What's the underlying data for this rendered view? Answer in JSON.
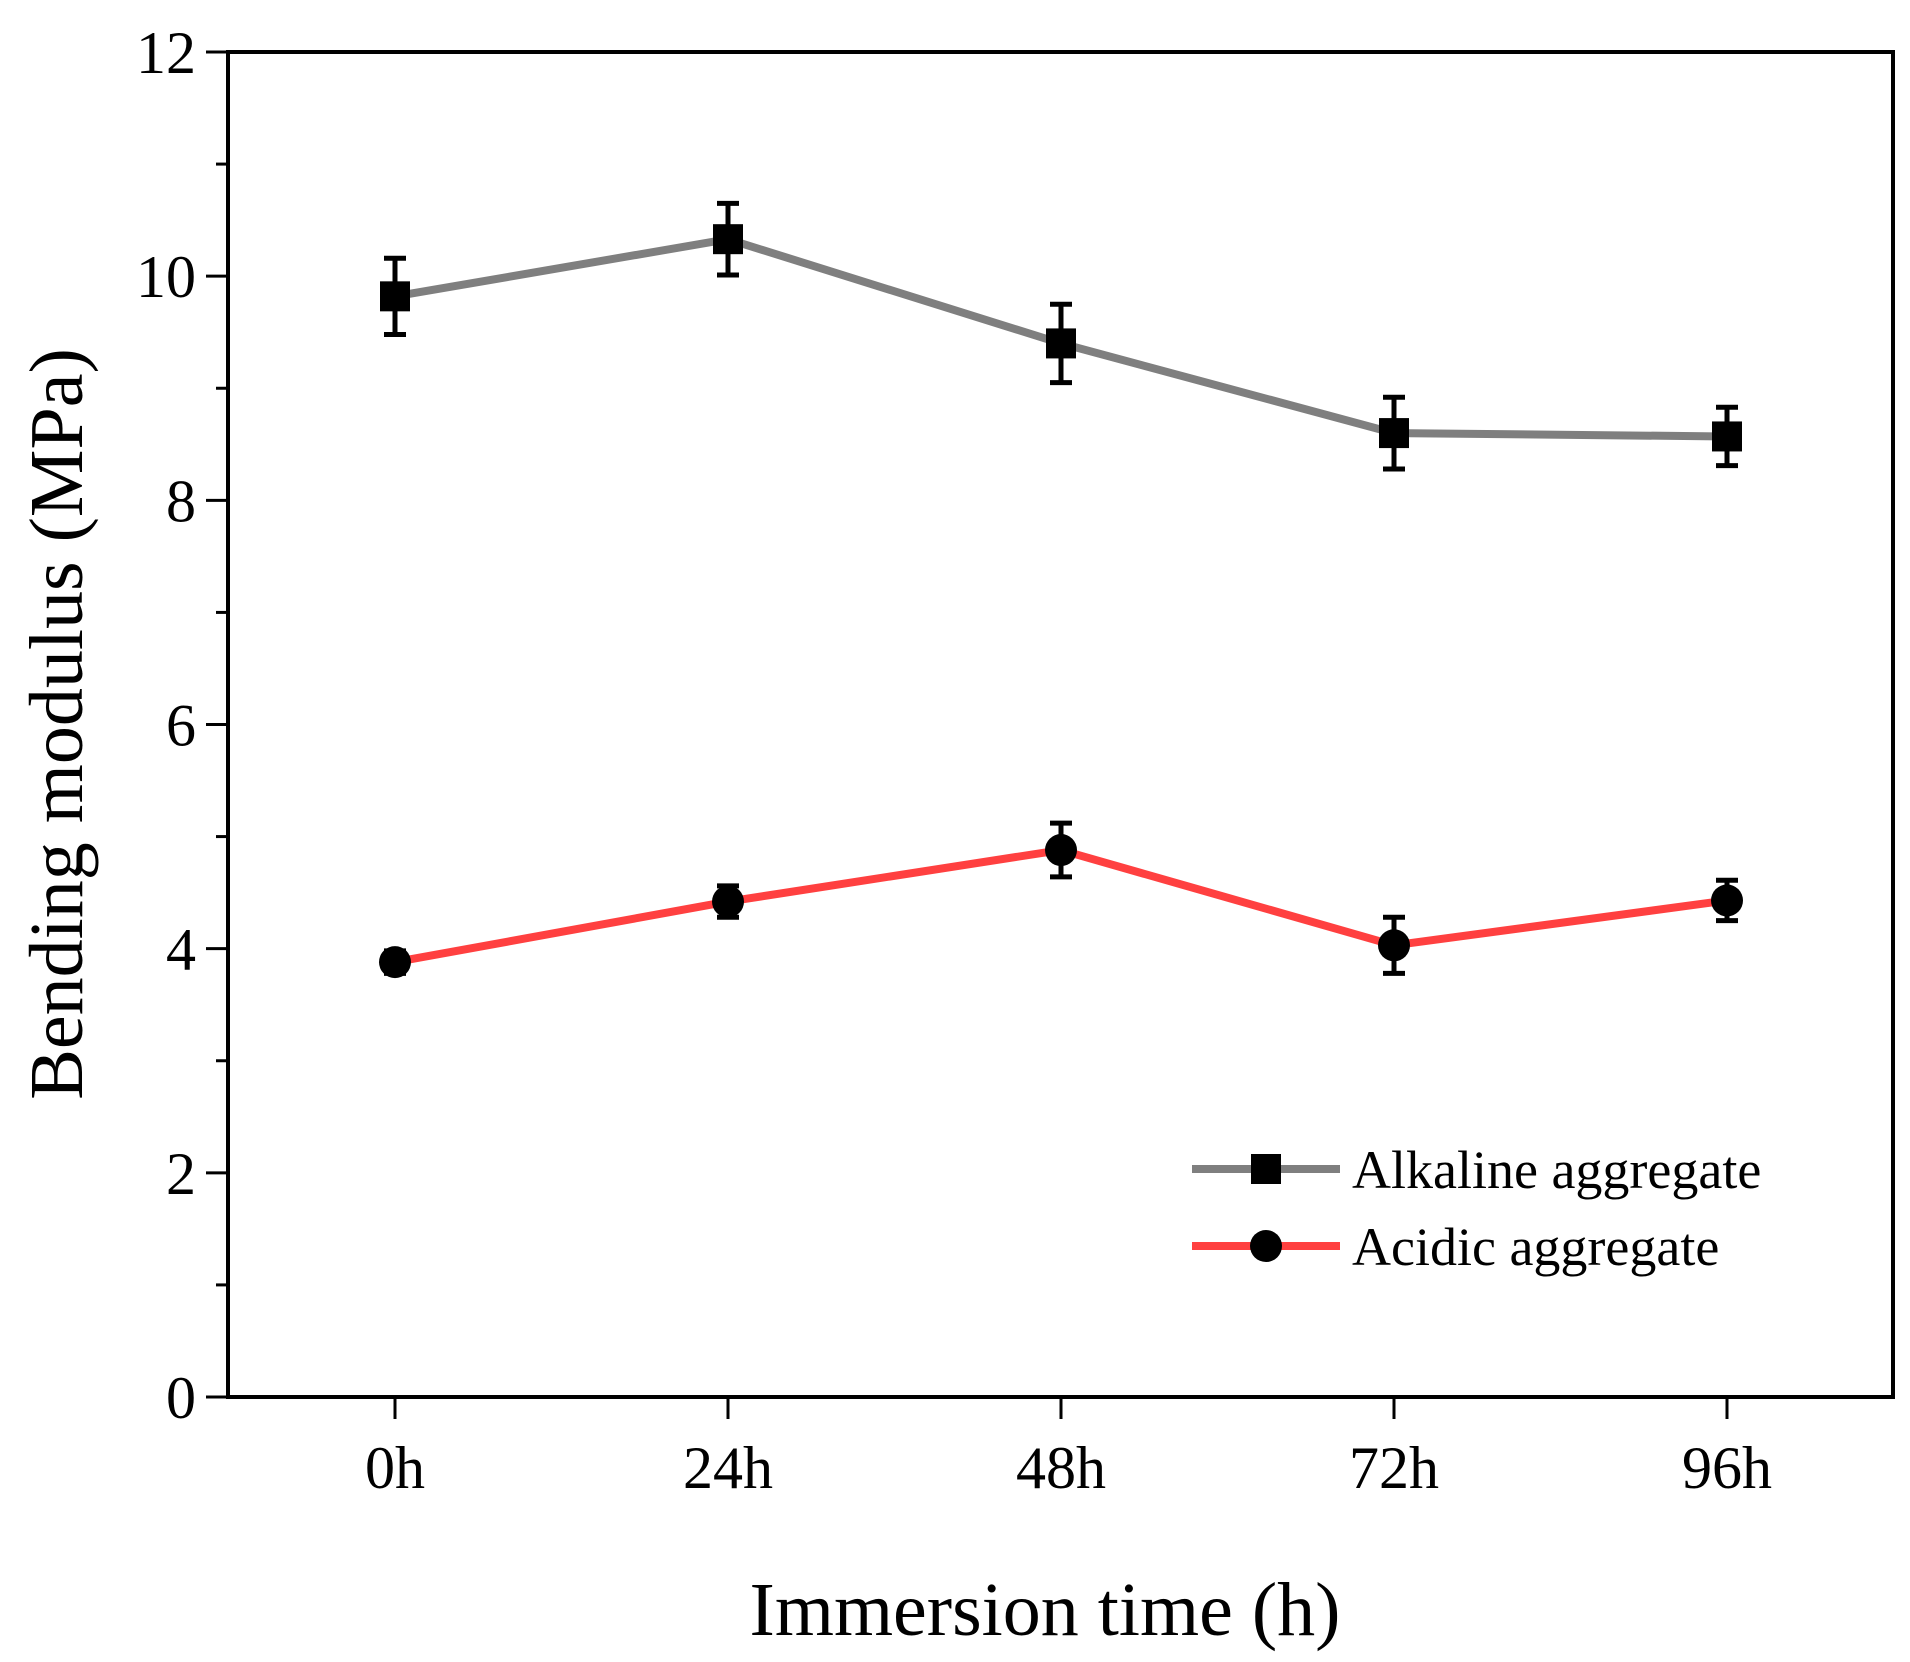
{
  "chart_data": {
    "type": "line",
    "xlabel": "Immersion time (h)",
    "ylabel": "Bending modulus (MPa)",
    "categories": [
      "0h",
      "24h",
      "48h",
      "72h",
      "96h"
    ],
    "ylim": [
      0,
      12
    ],
    "yticks": [
      "0",
      "2",
      "4",
      "6",
      "8",
      "10",
      "12"
    ],
    "grid": false,
    "legend_position": "bottom-right",
    "series": [
      {
        "name": "Alkaline aggregate",
        "marker": "square",
        "color": "#7f7f7f",
        "marker_color": "#000000",
        "values": [
          9.82,
          10.33,
          9.4,
          8.6,
          8.57
        ],
        "errors": [
          0.34,
          0.32,
          0.35,
          0.32,
          0.26
        ]
      },
      {
        "name": "Acidic aggregate",
        "marker": "circle",
        "color": "#ff4040",
        "marker_color": "#000000",
        "values": [
          3.88,
          4.42,
          4.88,
          4.03,
          4.43
        ],
        "errors": [
          0.1,
          0.14,
          0.24,
          0.25,
          0.18
        ]
      }
    ]
  }
}
